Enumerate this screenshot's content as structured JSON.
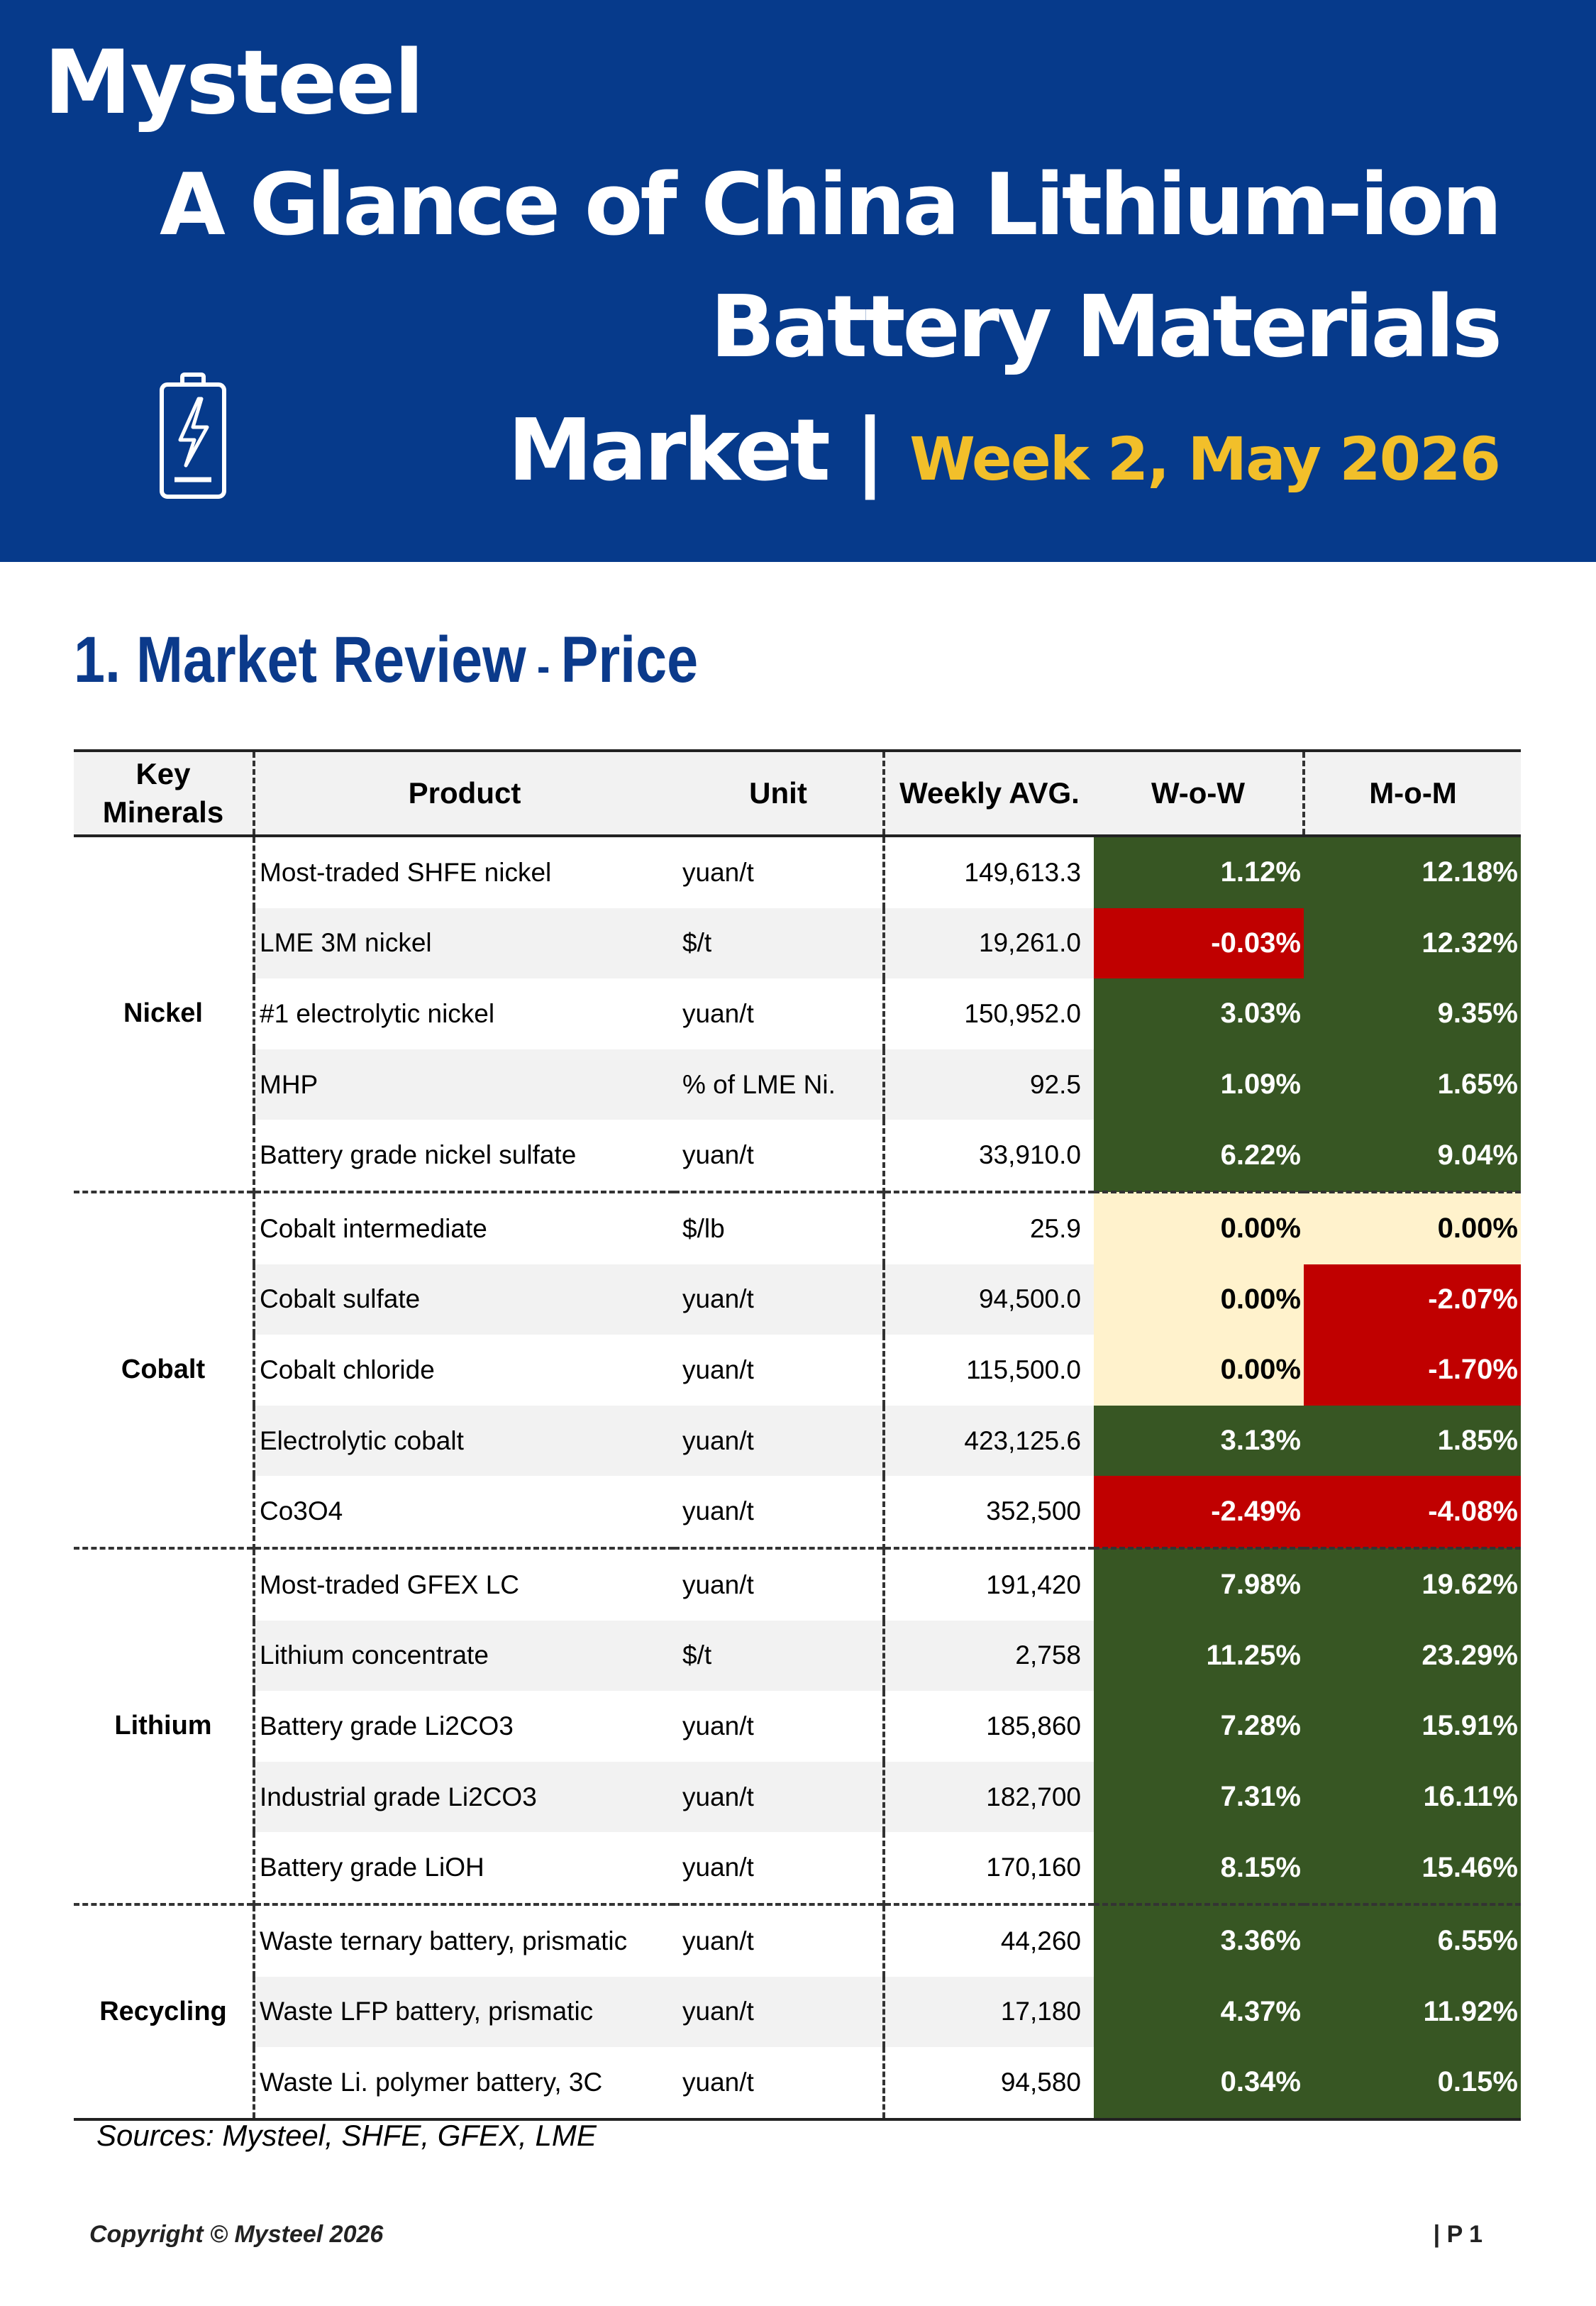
{
  "header": {
    "logo_text": "Mysteel",
    "title_line1": "A Glance of China Lithium-ion",
    "title_line2": "Battery Materials",
    "title_line3": "Market |",
    "week": "Week 2, May 2026",
    "battery_icon": "battery-charging-icon"
  },
  "section": {
    "title": "1. Market Review",
    "dash": " - ",
    "subtitle": "Price"
  },
  "table": {
    "headers": {
      "key_minerals": "Key\nMinerals",
      "product": "Product",
      "unit": "Unit",
      "weekly_avg": "Weekly AVG.",
      "wow": "W-o-W",
      "mom": "M-o-M"
    },
    "groups": [
      {
        "name": "Nickel",
        "rows": [
          {
            "product": "Most-traded SHFE nickel",
            "unit": "yuan/t",
            "avg": "149,613.3",
            "wow": "1.12%",
            "mom": "12.18%"
          },
          {
            "product": "LME 3M nickel",
            "unit": "$/t",
            "avg": "19,261.0",
            "wow": "-0.03%",
            "mom": "12.32%"
          },
          {
            "product": "#1 electrolytic nickel",
            "unit": "yuan/t",
            "avg": "150,952.0",
            "wow": "3.03%",
            "mom": "9.35%"
          },
          {
            "product": "MHP",
            "unit": "% of LME Ni.",
            "avg": "92.5",
            "wow": "1.09%",
            "mom": "1.65%"
          },
          {
            "product": "Battery grade nickel sulfate",
            "unit": "yuan/t",
            "avg": "33,910.0",
            "wow": "6.22%",
            "mom": "9.04%"
          }
        ]
      },
      {
        "name": "Cobalt",
        "rows": [
          {
            "product": "Cobalt intermediate",
            "unit": "$/lb",
            "avg": "25.9",
            "wow": "0.00%",
            "mom": "0.00%"
          },
          {
            "product": "Cobalt sulfate",
            "unit": "yuan/t",
            "avg": "94,500.0",
            "wow": "0.00%",
            "mom": "-2.07%"
          },
          {
            "product": "Cobalt chloride",
            "unit": "yuan/t",
            "avg": "115,500.0",
            "wow": "0.00%",
            "mom": "-1.70%"
          },
          {
            "product": "Electrolytic cobalt",
            "unit": "yuan/t",
            "avg": "423,125.6",
            "wow": "3.13%",
            "mom": "1.85%"
          },
          {
            "product": "Co3O4",
            "unit": "yuan/t",
            "avg": "352,500",
            "wow": "-2.49%",
            "mom": "-4.08%"
          }
        ]
      },
      {
        "name": "Lithium",
        "rows": [
          {
            "product": "Most-traded GFEX LC",
            "unit": "yuan/t",
            "avg": "191,420",
            "wow": "7.98%",
            "mom": "19.62%"
          },
          {
            "product": "Lithium concentrate",
            "unit": "$/t",
            "avg": "2,758",
            "wow": "11.25%",
            "mom": "23.29%"
          },
          {
            "product": "Battery grade Li2CO3",
            "unit": "yuan/t",
            "avg": "185,860",
            "wow": "7.28%",
            "mom": "15.91%"
          },
          {
            "product": "Industrial grade Li2CO3",
            "unit": "yuan/t",
            "avg": "182,700",
            "wow": "7.31%",
            "mom": "16.11%"
          },
          {
            "product": "Battery grade LiOH",
            "unit": "yuan/t",
            "avg": "170,160",
            "wow": "8.15%",
            "mom": "15.46%"
          }
        ]
      },
      {
        "name": "Recycling",
        "rows": [
          {
            "product": "Waste ternary battery, prismatic",
            "unit": "yuan/t",
            "avg": "44,260",
            "wow": "3.36%",
            "mom": "6.55%"
          },
          {
            "product": "Waste LFP battery, prismatic",
            "unit": "yuan/t",
            "avg": "17,180",
            "wow": "4.37%",
            "mom": "11.92%"
          },
          {
            "product": "Waste Li. polymer battery, 3C",
            "unit": "yuan/t",
            "avg": "94,580",
            "wow": "0.34%",
            "mom": "0.15%"
          }
        ]
      }
    ]
  },
  "colors": {
    "banner": "#063A8B",
    "accent_yellow": "#F2BF2A",
    "section_title": "#0B3A8B",
    "positive": "#375623",
    "negative": "#C00000",
    "neutral": "#FFF2CC"
  },
  "footer": {
    "sources": "Sources: Mysteel, SHFE, GFEX, LME",
    "copyright": "Copyright © Mysteel 2026",
    "page": "| P 1"
  }
}
